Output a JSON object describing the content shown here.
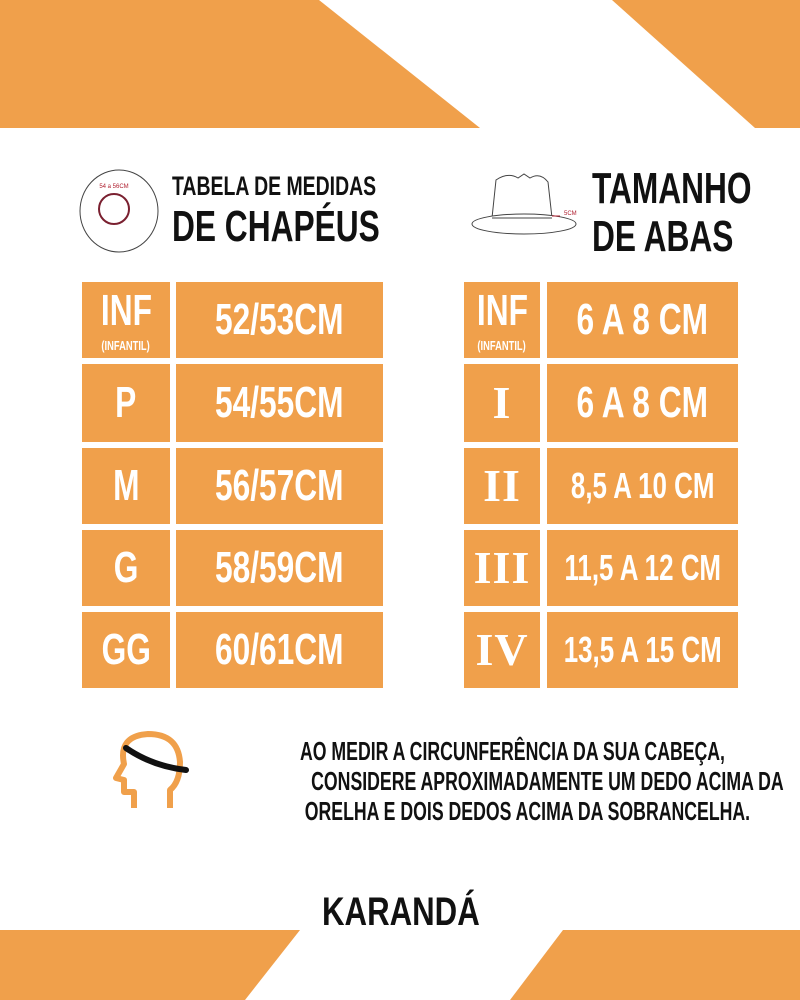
{
  "colors": {
    "accent": "#f0a04b",
    "text": "#111111",
    "cell_text": "#ffffff"
  },
  "left_section": {
    "title_line1": "TABELA DE MEDIDAS",
    "title_line2": "DE CHAPÉUS",
    "icon": "head-circumference-circle-icon",
    "icon_label": "54 a 56CM",
    "rows": [
      {
        "size": "INF",
        "size_sub": "(INFANTIL)",
        "value": "52/53CM"
      },
      {
        "size": "P",
        "value": "54/55CM"
      },
      {
        "size": "M",
        "value": "56/57CM"
      },
      {
        "size": "G",
        "value": "58/59CM"
      },
      {
        "size": "GG",
        "value": "60/61CM"
      }
    ]
  },
  "right_section": {
    "title_line1": "TAMANHO",
    "title_line2": "DE ABAS",
    "icon": "hat-brim-icon",
    "icon_label": "5CM",
    "rows": [
      {
        "size": "INF",
        "size_sub": "(INFANTIL)",
        "value": "6 A 8 CM"
      },
      {
        "size": "I",
        "value": "6 A 8 CM"
      },
      {
        "size": "II",
        "value": "8,5 A 10 CM"
      },
      {
        "size": "III",
        "value": "11,5 A 12 CM"
      },
      {
        "size": "IV",
        "value": "13,5 A 15 CM"
      }
    ]
  },
  "note": {
    "icon": "head-measure-icon",
    "line1": "AO MEDIR A CIRCUNFERÊNCIA DA SUA CABEÇA,",
    "line2": "CONSIDERE APROXIMADAMENTE UM DEDO ACIMA DA",
    "line3": "ORELHA E DOIS DEDOS ACIMA DA SOBRANCELHA."
  },
  "brand": {
    "name": "KARANDÁ",
    "icon": "karanda-logo-icon"
  }
}
